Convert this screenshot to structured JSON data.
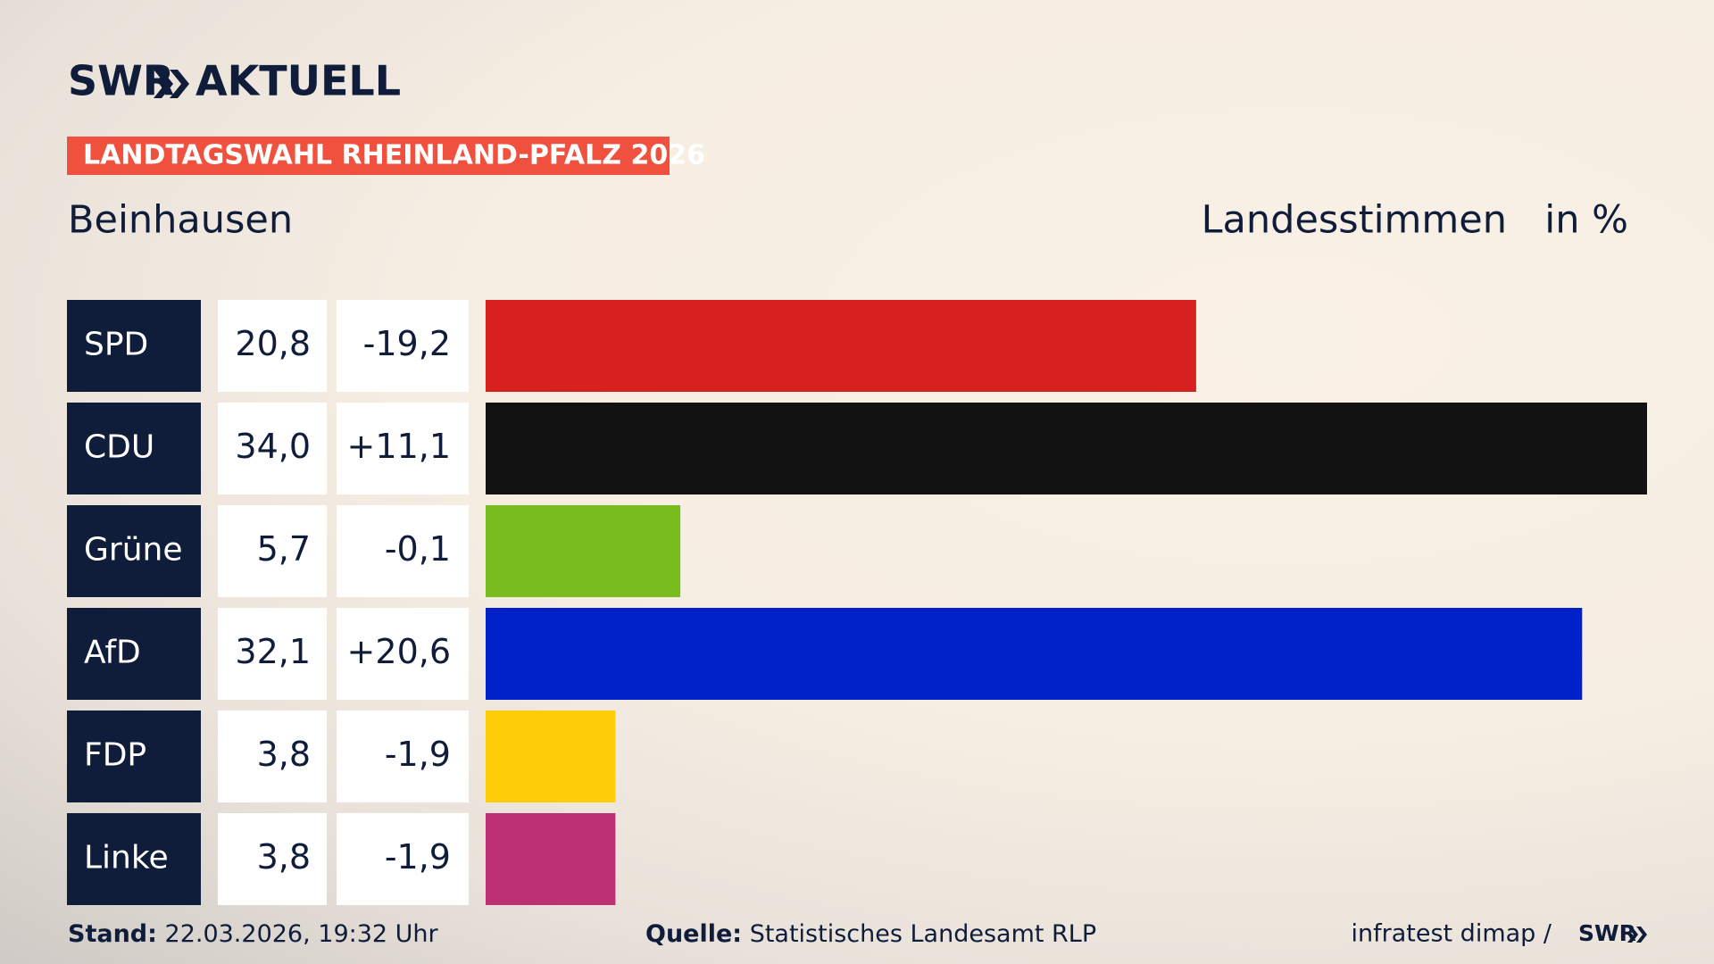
{
  "header": {
    "brand": "SWR",
    "title": "AKTUELL",
    "banner": "LANDTAGSWAHL RHEINLAND-PFALZ 2026"
  },
  "chart_data": {
    "type": "bar",
    "subtitle": "Beinhausen",
    "measure": "Landesstimmen",
    "unit": "in %",
    "categories": [
      "SPD",
      "CDU",
      "Grüne",
      "AfD",
      "FDP",
      "Linke"
    ],
    "values": [
      20.8,
      34.0,
      5.7,
      32.1,
      3.8,
      3.8
    ],
    "value_labels": [
      "20,8",
      "34,0",
      "5,7",
      "32,1",
      "3,8",
      "3,8"
    ],
    "changes": [
      -19.2,
      11.1,
      -0.1,
      20.6,
      -1.9,
      -1.9
    ],
    "change_labels": [
      "-19,2",
      "+11,1",
      "-0,1",
      "+20,6",
      "-1,9",
      "-1,9"
    ],
    "colors": [
      "#d72020",
      "#121212",
      "#79bc1d",
      "#0021c8",
      "#ffcd07",
      "#bc3173"
    ],
    "xlim": [
      0,
      34
    ]
  },
  "footer": {
    "stand_label": "Stand:",
    "stand": "22.03.2026, 19:32 Uhr",
    "source_label": "Quelle:",
    "source": "Statistisches Landesamt RLP",
    "credit": "infratest dimap /",
    "credit_brand": "SWR"
  }
}
